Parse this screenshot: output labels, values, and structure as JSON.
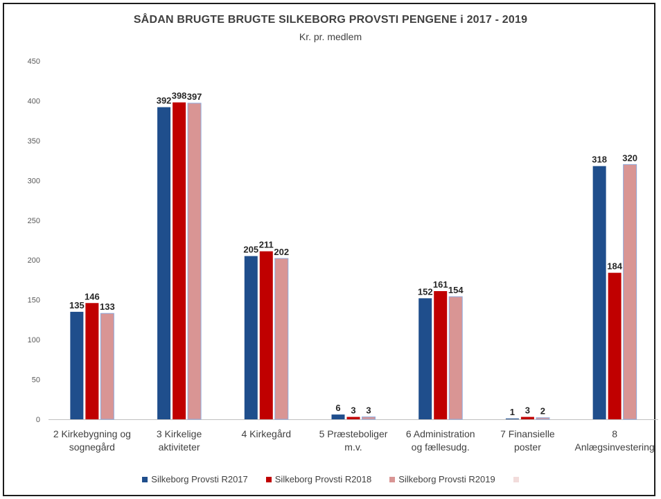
{
  "chart_data": {
    "type": "bar",
    "title": "SÅDAN BRUGTE BRUGTE SILKEBORG PROVSTI PENGENE i 2017 - 2019",
    "subtitle": "Kr. pr. medlem",
    "categories": [
      [
        "2  Kirkebygning og",
        "sognegård"
      ],
      [
        "3  Kirkelige",
        "aktiviteter"
      ],
      [
        "4  Kirkegård"
      ],
      [
        "5  Præsteboliger",
        "m.v."
      ],
      [
        "6  Administration",
        "og fællesudg."
      ],
      [
        "7  Finansielle",
        "poster"
      ],
      [
        "8",
        "Anlægsinvestering"
      ]
    ],
    "series": [
      {
        "name": "Silkeborg Provsti R2017",
        "color": "#1f4e8c",
        "values": [
          135,
          392,
          205,
          6,
          152,
          1,
          318
        ]
      },
      {
        "name": "Silkeborg Provsti R2018",
        "color": "#c00000",
        "values": [
          146,
          398,
          211,
          3,
          161,
          3,
          184
        ]
      },
      {
        "name": "Silkeborg Provsti R2019",
        "color": "#d99594",
        "values": [
          133,
          397,
          202,
          3,
          154,
          2,
          320
        ]
      }
    ],
    "ylim": [
      0,
      450
    ],
    "yticks": [
      0,
      50,
      100,
      150,
      200,
      250,
      300,
      350,
      400,
      450
    ],
    "grid": false,
    "legend_position": "bottom",
    "extra_legend_swatch_color": "#f2dcdb"
  }
}
